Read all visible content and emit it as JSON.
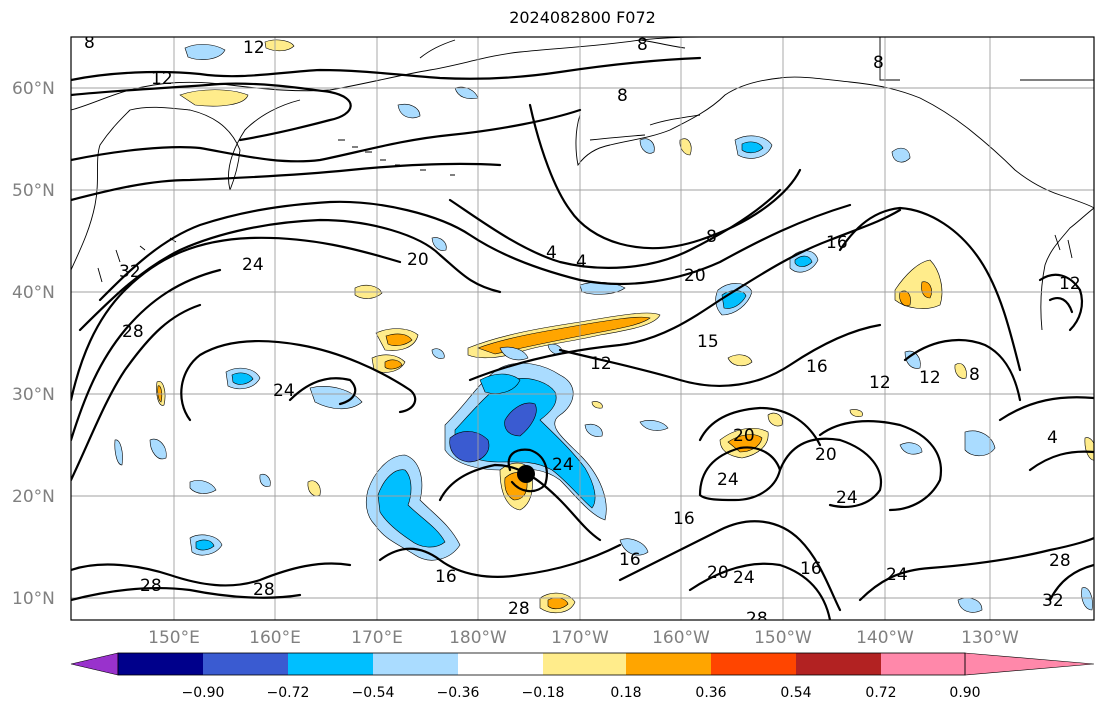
{
  "title": "2024082800 F072",
  "map": {
    "lat_ticks": [
      "60°N",
      "50°N",
      "40°N",
      "30°N",
      "20°N",
      "10°N"
    ],
    "lon_ticks": [
      "150°E",
      "160°E",
      "170°E",
      "180°W",
      "170°W",
      "160°W",
      "150°W",
      "140°W",
      "130°W"
    ],
    "contour_labels": [
      "8",
      "12",
      "12",
      "8",
      "8",
      "8",
      "4",
      "4",
      "20",
      "24",
      "32",
      "28",
      "8",
      "20",
      "16",
      "12",
      "12",
      "12",
      "15",
      "16",
      "12",
      "8",
      "4",
      "24",
      "24",
      "20",
      "20",
      "24",
      "24",
      "16",
      "16",
      "16",
      "20",
      "24",
      "16",
      "24",
      "28",
      "32",
      "28",
      "28",
      "28",
      "28"
    ],
    "storm_marker": "black-dot"
  },
  "colorbar": {
    "labels": [
      "−0.90",
      "−0.72",
      "−0.54",
      "−0.36",
      "−0.18",
      "0.18",
      "0.36",
      "0.54",
      "0.72",
      "0.90"
    ],
    "colors": [
      "#9932cc",
      "#00008b",
      "#3a5bd1",
      "#00bfff",
      "#aadcff",
      "#ffffff",
      "#ffec8b",
      "#ffa500",
      "#ff4500",
      "#b22222",
      "#ff88aa"
    ]
  }
}
